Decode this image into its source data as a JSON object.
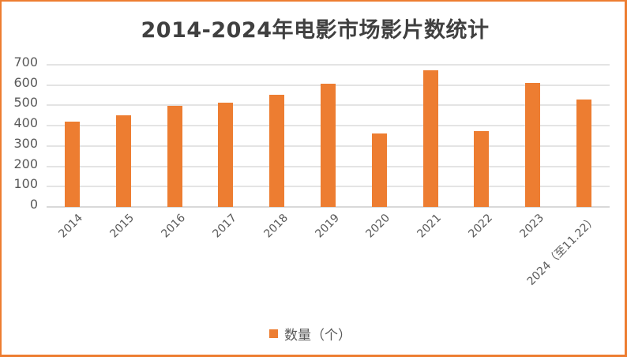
{
  "chart_data": {
    "type": "bar",
    "title": "2014-2024年电影市场影片数统计",
    "categories": [
      "2014",
      "2015",
      "2016",
      "2017",
      "2018",
      "2019",
      "2020",
      "2021",
      "2022",
      "2023",
      "2024（至11.22）"
    ],
    "series": [
      {
        "name": "数量（个）",
        "color": "#ED7D31",
        "values": [
          420,
          451,
          498,
          514,
          553,
          607,
          362,
          673,
          374,
          611,
          529
        ]
      }
    ],
    "xlabel": "",
    "ylabel": "",
    "ylim": [
      0,
      700
    ],
    "yticks": [
      0,
      100,
      200,
      300,
      400,
      500,
      600,
      700
    ],
    "grid": true,
    "legend_position": "bottom"
  },
  "ytick_labels": [
    "700",
    "600",
    "500",
    "400",
    "300",
    "200",
    "100",
    "0"
  ],
  "legend": {
    "label": "数量（个）"
  },
  "colors": {
    "bar": "#ED7D31",
    "frame": "#ED7D31",
    "grid": "#E4E4E4",
    "text": "#595959",
    "title": "#404040"
  }
}
